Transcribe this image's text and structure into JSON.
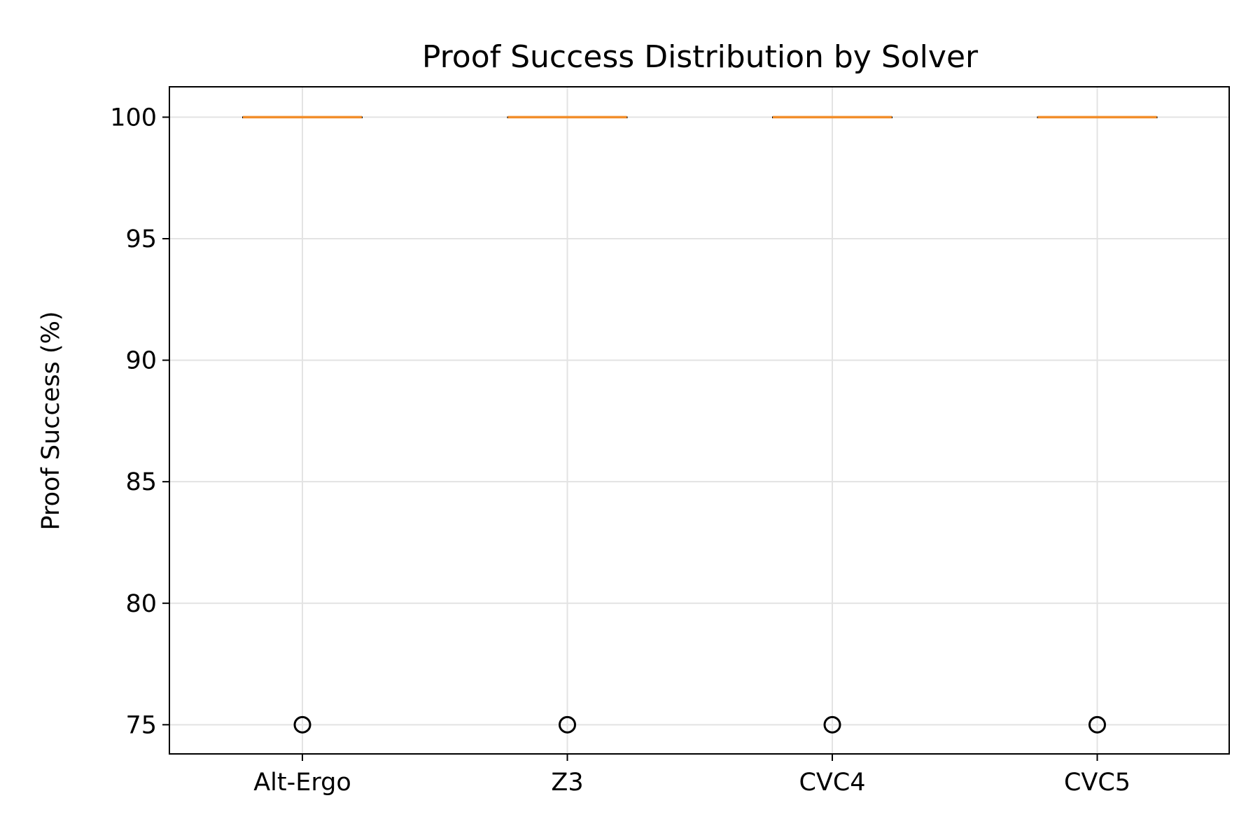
{
  "chart_data": {
    "type": "box",
    "title": "Proof Success Distribution by Solver",
    "xlabel": "",
    "ylabel": "Proof Success (%)",
    "categories": [
      "Alt-Ergo",
      "Z3",
      "CVC4",
      "CVC5"
    ],
    "boxes": [
      {
        "name": "Alt-Ergo",
        "q1": 100,
        "median": 100,
        "q3": 100,
        "whisker_low": 100,
        "whisker_high": 100,
        "fliers": [
          75
        ]
      },
      {
        "name": "Z3",
        "q1": 100,
        "median": 100,
        "q3": 100,
        "whisker_low": 100,
        "whisker_high": 100,
        "fliers": [
          75
        ]
      },
      {
        "name": "CVC4",
        "q1": 100,
        "median": 100,
        "q3": 100,
        "whisker_low": 100,
        "whisker_high": 100,
        "fliers": [
          75
        ]
      },
      {
        "name": "CVC5",
        "q1": 100,
        "median": 100,
        "q3": 100,
        "whisker_low": 100,
        "whisker_high": 100,
        "fliers": [
          75
        ]
      }
    ],
    "yticks": [
      75,
      80,
      85,
      90,
      95,
      100
    ],
    "ylim": [
      73.8,
      101.25
    ],
    "grid": true,
    "colors": {
      "median": "#f28e2b",
      "box": "#000000",
      "grid": "#e3e3e3"
    }
  }
}
